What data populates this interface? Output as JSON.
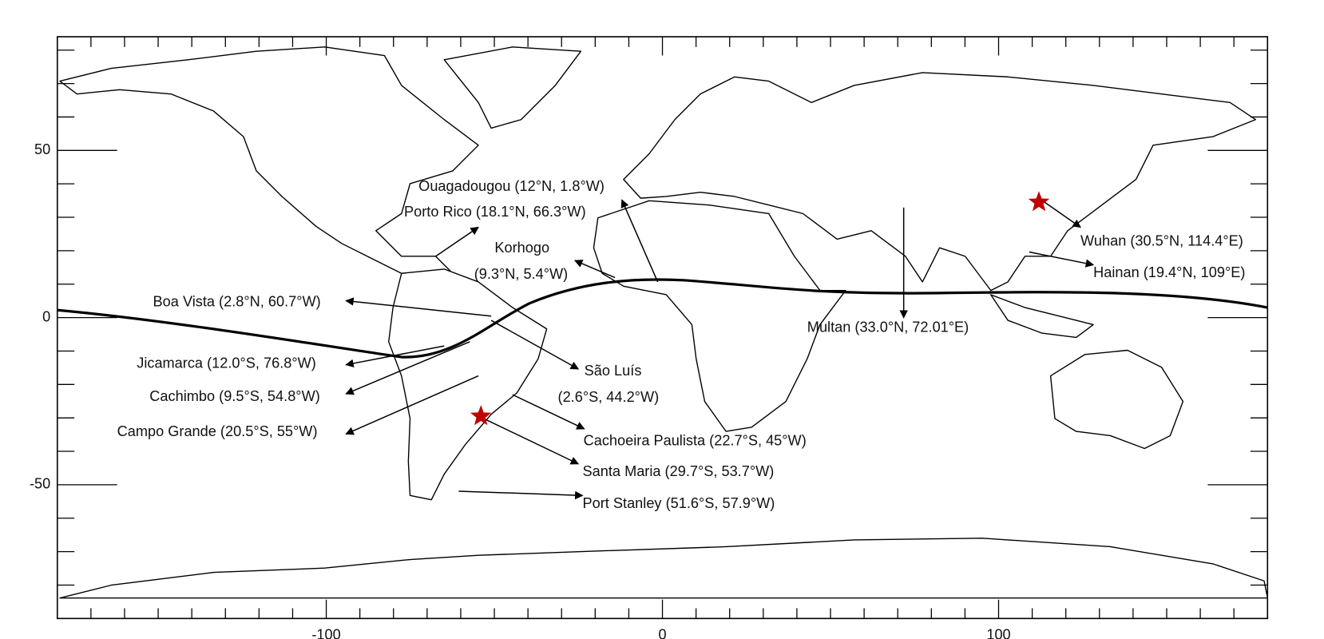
{
  "chart_data": {
    "type": "map",
    "xlim": [
      -180,
      180
    ],
    "ylim": [
      -90,
      84
    ],
    "xticks": [
      -100,
      0,
      100
    ],
    "yticks": [
      -50,
      0,
      50
    ],
    "xminorticks": [
      -170,
      -160,
      -150,
      -140,
      -130,
      -120,
      -110,
      -90,
      -80,
      -70,
      -60,
      -50,
      -40,
      -30,
      -20,
      -10,
      10,
      20,
      30,
      40,
      50,
      60,
      70,
      80,
      90,
      110,
      120,
      130,
      140,
      150,
      160,
      170
    ],
    "yminorticks": [
      -80,
      -70,
      -60,
      -40,
      -30,
      -20,
      -10,
      10,
      20,
      30,
      40,
      60,
      70,
      80
    ],
    "stations": [
      {
        "lines": [
          "Ouagadougou (12°N, 1.8°W)"
        ]
      },
      {
        "lines": [
          "Porto Rico (18.1°N, 66.3°W)"
        ]
      },
      {
        "lines": [
          "Korhogo",
          "(9.3°N, 5.4°W)"
        ]
      },
      {
        "lines": [
          "Boa Vista (2.8°N, 60.7°W)"
        ]
      },
      {
        "lines": [
          "Jicamarca (12.0°S, 76.8°W)"
        ]
      },
      {
        "lines": [
          "Cachimbo (9.5°S, 54.8°W)"
        ]
      },
      {
        "lines": [
          "Campo Grande (20.5°S, 55°W)"
        ]
      },
      {
        "lines": [
          "São Luís",
          "(2.6°S, 44.2°W)"
        ]
      },
      {
        "lines": [
          "Cachoeira Paulista (22.7°S, 45°W)"
        ]
      },
      {
        "lines": [
          "Santa Maria (29.7°S, 53.7°W)"
        ]
      },
      {
        "lines": [
          "Port Stanley (51.6°S, 57.9°W)"
        ]
      },
      {
        "lines": [
          "Wuhan (30.5°N, 114.4°E)"
        ]
      },
      {
        "lines": [
          "Hainan (19.4°N, 109°E)"
        ]
      },
      {
        "lines": [
          "Multan (33.0°N, 72.01°E)"
        ]
      }
    ],
    "stars": [
      {
        "lon": -54,
        "lat": -29.5,
        "color": "#c00000"
      },
      {
        "lon": 112,
        "lat": 34.5,
        "color": "#c00000"
      }
    ]
  }
}
